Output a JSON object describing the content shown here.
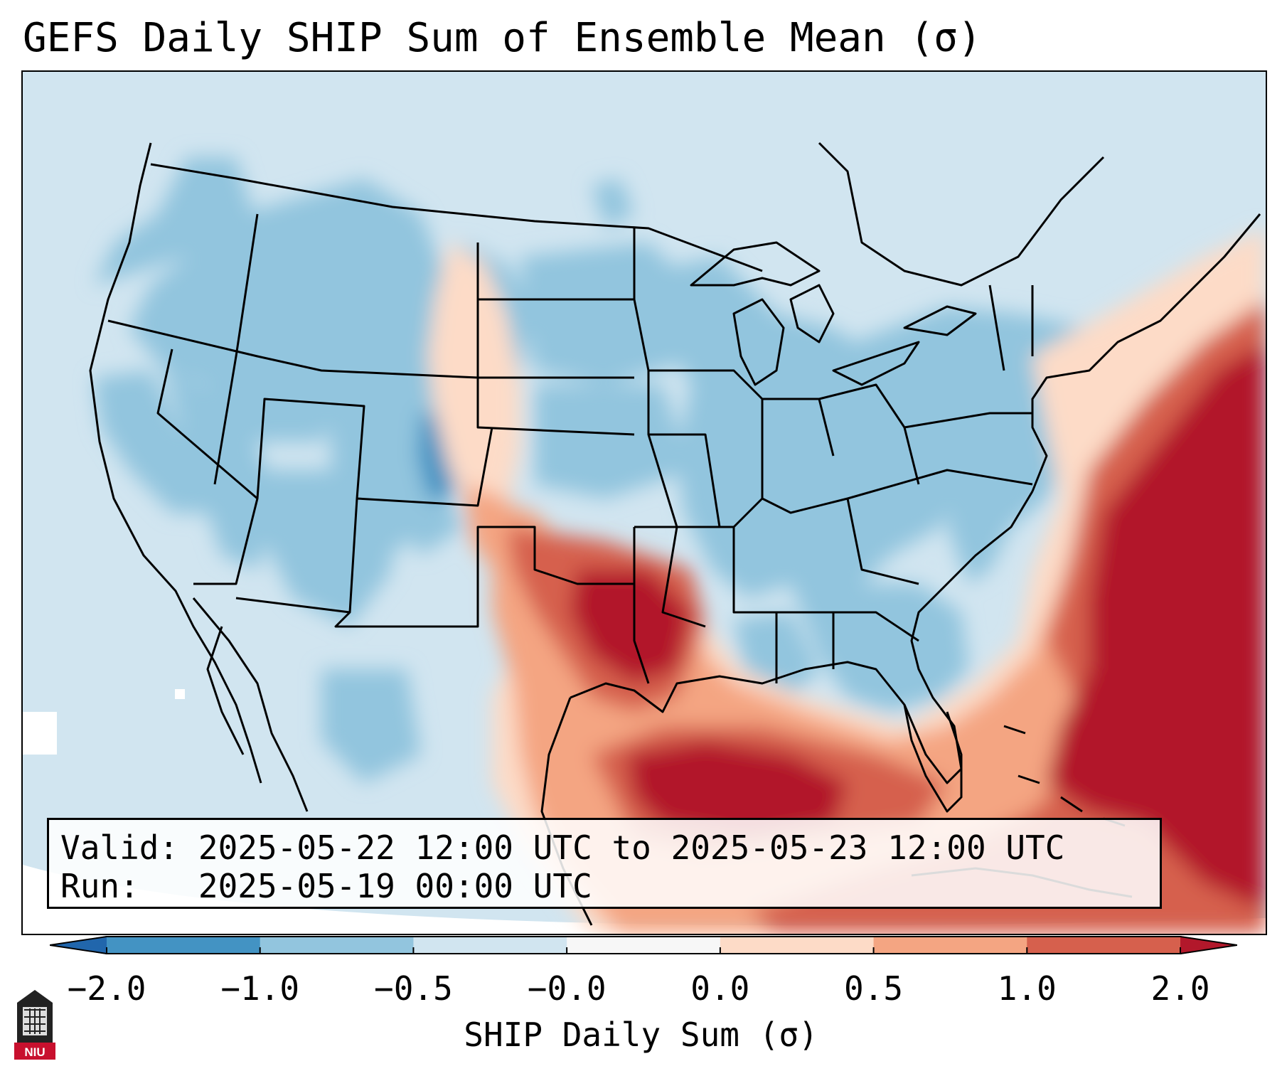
{
  "title": "GEFS Daily SHIP Sum of Ensemble Mean (σ)",
  "info": {
    "valid_label": "Valid:",
    "valid_value": "2025-05-22 12:00 UTC to 2025-05-23 12:00 UTC",
    "run_label": "Run:",
    "run_value": "2025-05-19 00:00 UTC"
  },
  "colorbar": {
    "label": "SHIP Daily Sum (σ)",
    "ticks": [
      "−2.0",
      "−1.0",
      "−0.5",
      "−0.0",
      "0.0",
      "0.5",
      "1.0",
      "2.0"
    ],
    "bin_colors": [
      "#4393c3",
      "#92c5de",
      "#d1e5f0",
      "#f7f7f7",
      "#fddbc7",
      "#f4a582",
      "#d6604d"
    ],
    "extend_low_color": "#2166ac",
    "extend_high_color": "#b2182b"
  },
  "map": {
    "projection": "Lambert conformal, CONUS",
    "field_colors": {
      "lt_-1": "#4393c3",
      "-1_-0.5": "#92c5de",
      "-0.5_0": "#d1e5f0",
      "0_0.5": "#fddbc7",
      "0.5_1": "#f4a582",
      "1_2": "#d6604d",
      "gt_2": "#b2182b"
    },
    "highlight_regions": [
      "Western Gulf of Mexico",
      "Western Atlantic off Southeast coast",
      "Oklahoma",
      "North Texas"
    ]
  },
  "logo": {
    "text": "NIU"
  }
}
